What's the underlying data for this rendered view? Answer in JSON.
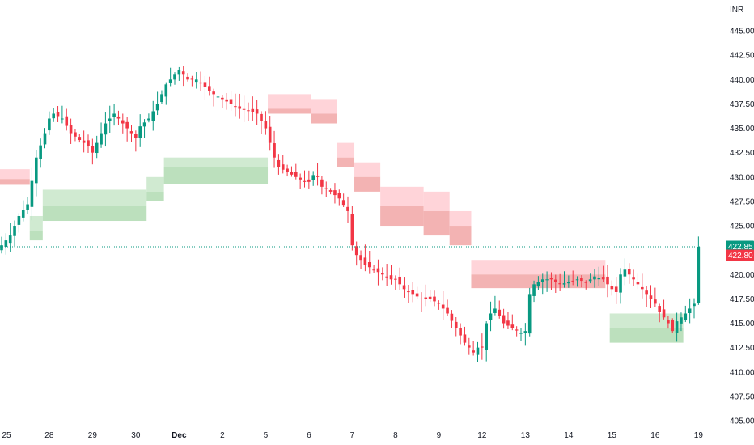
{
  "currency": "INR",
  "colors": {
    "up": "#089981",
    "down": "#f23645",
    "up_band_outer": "#c8e6c9",
    "up_band_inner": "#a5d6a7",
    "down_band_outer": "#ffcdd2",
    "down_band_inner": "#ef9a9a",
    "last_price_line": "#089981",
    "axis_text": "#131722"
  },
  "price_tags": [
    {
      "label": "422.85",
      "value": 422.85,
      "color": "#089981"
    },
    {
      "label": "422.80",
      "value": 422.8,
      "color": "#f23645"
    }
  ],
  "chart_data": {
    "type": "candlestick",
    "y_range": [
      405,
      446.5
    ],
    "y_ticks": [
      "405.00",
      "407.50",
      "410.00",
      "412.50",
      "415.00",
      "417.50",
      "420.00",
      "422.50",
      "425.00",
      "427.50",
      "430.00",
      "432.50",
      "435.00",
      "437.50",
      "440.00",
      "442.50",
      "445.00"
    ],
    "x_ticks": [
      {
        "label": "25",
        "index": 0
      },
      {
        "label": "28",
        "index": 11
      },
      {
        "label": "29",
        "index": 21
      },
      {
        "label": "30",
        "index": 31
      },
      {
        "label": "Dec",
        "index": 41,
        "bold": true
      },
      {
        "label": "2",
        "index": 51
      },
      {
        "label": "5",
        "index": 61
      },
      {
        "label": "6",
        "index": 71
      },
      {
        "label": "7",
        "index": 81
      },
      {
        "label": "8",
        "index": 91
      },
      {
        "label": "9",
        "index": 101
      },
      {
        "label": "12",
        "index": 111
      },
      {
        "label": "13",
        "index": 121
      },
      {
        "label": "14",
        "index": 131
      },
      {
        "label": "15",
        "index": 141
      },
      {
        "label": "16",
        "index": 151
      },
      {
        "label": "19",
        "index": 161
      }
    ],
    "candle_count": 162,
    "close_anchors": [
      [
        0,
        423.0
      ],
      [
        2,
        424.0
      ],
      [
        4,
        426.0
      ],
      [
        6,
        427.2
      ],
      [
        8,
        432.0
      ],
      [
        10,
        434.5
      ],
      [
        11,
        436.0
      ],
      [
        12,
        436.5
      ],
      [
        14,
        436.0
      ],
      [
        16,
        434.5
      ],
      [
        18,
        433.8
      ],
      [
        20,
        433.2
      ],
      [
        21,
        432.5
      ],
      [
        22,
        433.5
      ],
      [
        24,
        435.5
      ],
      [
        26,
        436.5
      ],
      [
        28,
        435.5
      ],
      [
        30,
        434.5
      ],
      [
        31,
        434.0
      ],
      [
        32,
        435.2
      ],
      [
        34,
        436.0
      ],
      [
        36,
        437.5
      ],
      [
        38,
        439.5
      ],
      [
        40,
        440.5
      ],
      [
        41,
        441.0
      ],
      [
        43,
        440.0
      ],
      [
        45,
        440.0
      ],
      [
        47,
        439.2
      ],
      [
        49,
        438.5
      ],
      [
        51,
        438.0
      ],
      [
        53,
        437.5
      ],
      [
        55,
        437.0
      ],
      [
        57,
        436.8
      ],
      [
        59,
        436.5
      ],
      [
        61,
        435.0
      ],
      [
        62,
        433.5
      ],
      [
        63,
        432.0
      ],
      [
        64,
        431.0
      ],
      [
        66,
        430.5
      ],
      [
        68,
        430.0
      ],
      [
        70,
        429.5
      ],
      [
        71,
        429.5
      ],
      [
        72,
        430.2
      ],
      [
        73,
        430.0
      ],
      [
        74,
        429.0
      ],
      [
        76,
        428.5
      ],
      [
        78,
        427.8
      ],
      [
        80,
        426.5
      ],
      [
        81,
        423.0
      ],
      [
        82,
        422.0
      ],
      [
        84,
        421.0
      ],
      [
        86,
        420.5
      ],
      [
        88,
        420.0
      ],
      [
        90,
        419.5
      ],
      [
        91,
        419.5
      ],
      [
        93,
        418.5
      ],
      [
        95,
        418.0
      ],
      [
        97,
        417.5
      ],
      [
        99,
        417.5
      ],
      [
        101,
        417.0
      ],
      [
        103,
        416.0
      ],
      [
        105,
        414.5
      ],
      [
        107,
        413.0
      ],
      [
        109,
        412.0
      ],
      [
        110,
        412.5
      ],
      [
        111,
        412.5
      ],
      [
        112,
        415.0
      ],
      [
        113,
        416.0
      ],
      [
        114,
        416.5
      ],
      [
        116,
        415.0
      ],
      [
        118,
        414.5
      ],
      [
        120,
        414.0
      ],
      [
        121,
        414.2
      ],
      [
        122,
        418.0
      ],
      [
        123,
        419.0
      ],
      [
        125,
        419.5
      ],
      [
        127,
        419.5
      ],
      [
        129,
        419.0
      ],
      [
        131,
        419.2
      ],
      [
        133,
        419.5
      ],
      [
        135,
        419.2
      ],
      [
        137,
        419.8
      ],
      [
        139,
        419.5
      ],
      [
        141,
        418.5
      ],
      [
        142,
        418.2
      ],
      [
        143,
        420.0
      ],
      [
        144,
        420.5
      ],
      [
        145,
        420.0
      ],
      [
        147,
        419.0
      ],
      [
        149,
        418.0
      ],
      [
        151,
        417.0
      ],
      [
        152,
        416.2
      ],
      [
        154,
        415.0
      ],
      [
        155,
        414.2
      ],
      [
        156,
        415.2
      ],
      [
        158,
        416.0
      ],
      [
        160,
        417.0
      ],
      [
        161,
        422.85
      ]
    ],
    "bands": [
      {
        "kind": "down",
        "start": 0,
        "end": 7,
        "top": 430.8,
        "mid": 429.8,
        "bottom": 429.2
      },
      {
        "kind": "up",
        "start": 7,
        "end": 10,
        "top": 426.0,
        "mid": 424.5,
        "bottom": 423.5
      },
      {
        "kind": "up",
        "start": 10,
        "end": 34,
        "top": 428.7,
        "mid": 427.0,
        "bottom": 425.5
      },
      {
        "kind": "up",
        "start": 34,
        "end": 38,
        "top": 430.0,
        "mid": 428.5,
        "bottom": 427.5
      },
      {
        "kind": "up",
        "start": 38,
        "end": 62,
        "top": 432.0,
        "mid": 431.0,
        "bottom": 429.3
      },
      {
        "kind": "down",
        "start": 62,
        "end": 72,
        "top": 438.5,
        "mid": 437.0,
        "bottom": 436.5
      },
      {
        "kind": "down",
        "start": 72,
        "end": 78,
        "top": 438.0,
        "mid": 436.5,
        "bottom": 435.5
      },
      {
        "kind": "down",
        "start": 78,
        "end": 82,
        "top": 433.5,
        "mid": 432.0,
        "bottom": 431.0
      },
      {
        "kind": "down",
        "start": 82,
        "end": 88,
        "top": 431.5,
        "mid": 430.0,
        "bottom": 428.5
      },
      {
        "kind": "down",
        "start": 88,
        "end": 98,
        "top": 429.0,
        "mid": 427.0,
        "bottom": 425.0
      },
      {
        "kind": "down",
        "start": 98,
        "end": 104,
        "top": 428.5,
        "mid": 426.5,
        "bottom": 424.0
      },
      {
        "kind": "down",
        "start": 104,
        "end": 109,
        "top": 426.5,
        "mid": 425.0,
        "bottom": 423.0
      },
      {
        "kind": "down",
        "start": 109,
        "end": 140,
        "top": 421.5,
        "mid": 420.0,
        "bottom": 418.6
      },
      {
        "kind": "up",
        "start": 141,
        "end": 158,
        "top": 416.0,
        "mid": 414.5,
        "bottom": 413.0
      }
    ]
  }
}
